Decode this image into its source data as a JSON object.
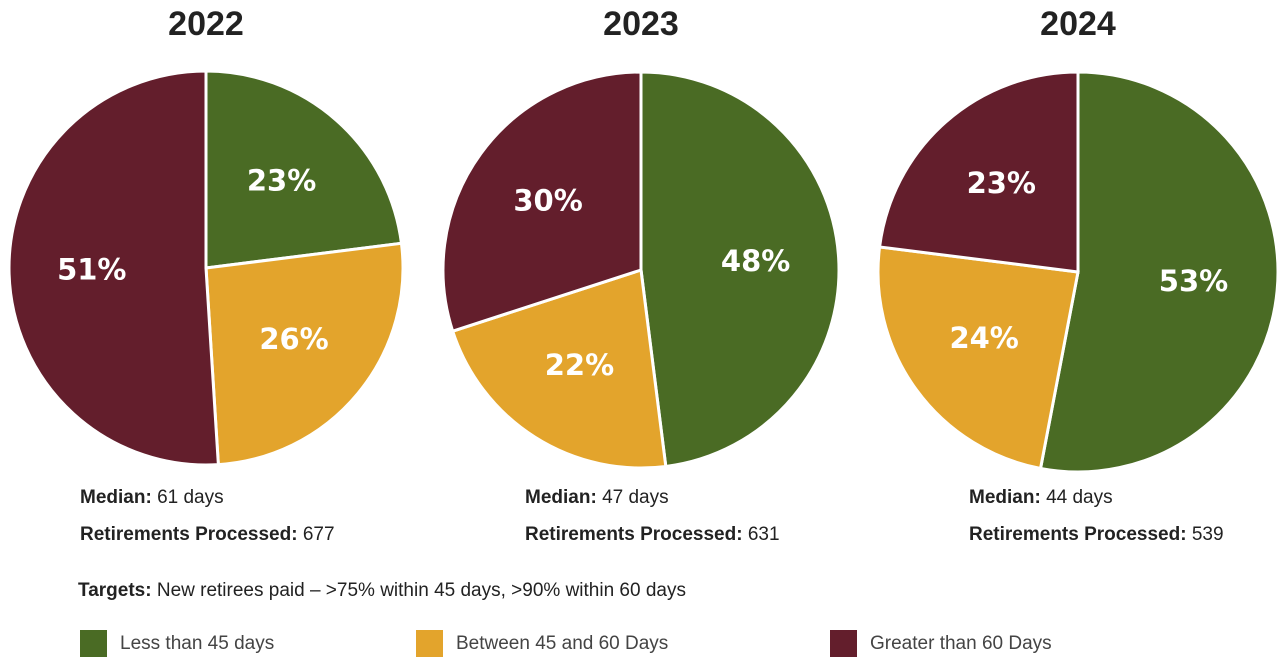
{
  "chart_data": [
    {
      "type": "pie",
      "title": "2022",
      "values": [
        23,
        26,
        51
      ],
      "value_labels": [
        "23%",
        "26%",
        "51%"
      ],
      "median_label": "Median:",
      "median": "61 days",
      "processed_label": "Retirements Processed:",
      "processed": 677
    },
    {
      "type": "pie",
      "title": "2023",
      "values": [
        48,
        22,
        30
      ],
      "value_labels": [
        "48%",
        "22%",
        "30%"
      ],
      "median_label": "Median:",
      "median": "47 days",
      "processed_label": "Retirements Processed:",
      "processed": 631
    },
    {
      "type": "pie",
      "title": "2024",
      "values": [
        53,
        24,
        23
      ],
      "value_labels": [
        "53%",
        "24%",
        "23%"
      ],
      "median_label": "Median:",
      "median": "44 days",
      "processed_label": "Retirements Processed:",
      "processed": 539
    }
  ],
  "targets_label": "Targets:",
  "targets_text": "New retirees paid – >75% within 45 days, >90% within 60 days",
  "legend": [
    {
      "name": "Less than 45 days",
      "color": "#4a6b24"
    },
    {
      "name": "Between 45 and 60 Days",
      "color": "#e3a42c"
    },
    {
      "name": "Greater than 60 Days",
      "color": "#631e2c"
    }
  ]
}
